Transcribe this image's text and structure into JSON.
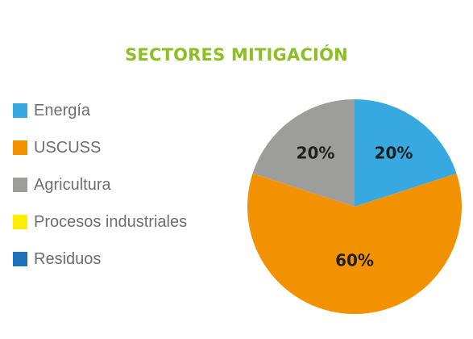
{
  "colors": {
    "title": "#8cbf24"
  },
  "chart_data": {
    "type": "pie",
    "title": "SECTORES MITIGACIÓN",
    "legend_position": "left",
    "categories": [
      "Energía",
      "USCUSS",
      "Agricultura",
      "Procesos industriales",
      "Residuos"
    ],
    "colors": [
      "#38a8e0",
      "#f39200",
      "#9d9d9c",
      "#ffed00",
      "#1d71b8"
    ],
    "values": [
      20,
      60,
      20,
      0,
      0
    ],
    "value_labels": [
      "20%",
      "60%",
      "20%",
      "",
      ""
    ]
  }
}
